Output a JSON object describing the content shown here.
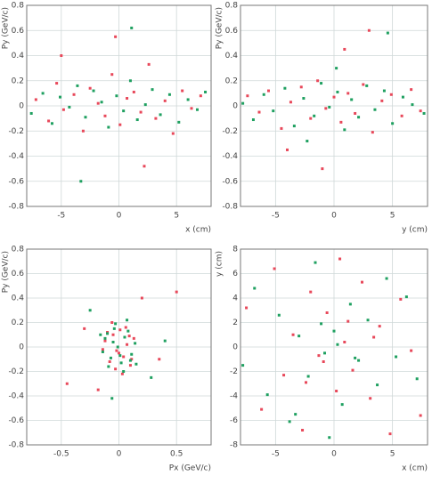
{
  "chart_data": [
    {
      "type": "scatter",
      "xlabel": "x (cm)",
      "ylabel": "Py (GeV/c)",
      "xlim": [
        -8,
        8
      ],
      "ylim": [
        -0.8,
        0.8
      ],
      "xticks": [
        -5,
        0,
        5
      ],
      "yticks": [
        -0.8,
        -0.6,
        -0.4,
        -0.2,
        0,
        0.2,
        0.4,
        0.6,
        0.8
      ],
      "grid": true,
      "series": [
        {
          "color": "#e8485a",
          "x": [
            -7.2,
            -6.1,
            -5.4,
            -4.8,
            -3.9,
            -3.1,
            -2.5,
            -1.8,
            -1.2,
            -0.6,
            0.1,
            0.7,
            1.3,
            1.9,
            2.6,
            3.2,
            4.0,
            4.7,
            5.5,
            6.3,
            7.1,
            -0.3,
            2.2,
            -5.0
          ],
          "y": [
            0.05,
            -0.12,
            0.18,
            -0.03,
            0.09,
            -0.2,
            0.14,
            0.02,
            -0.08,
            0.25,
            -0.15,
            0.06,
            0.11,
            -0.05,
            0.33,
            -0.1,
            0.04,
            -0.22,
            0.12,
            -0.02,
            0.08,
            0.55,
            -0.48,
            0.4
          ]
        },
        {
          "color": "#1fa060",
          "x": [
            -7.6,
            -6.6,
            -5.8,
            -5.1,
            -4.3,
            -3.6,
            -2.9,
            -2.2,
            -1.5,
            -0.9,
            -0.2,
            0.4,
            1.0,
            1.6,
            2.3,
            2.9,
            3.6,
            4.4,
            5.2,
            6.0,
            6.8,
            7.5,
            1.1,
            -3.3
          ],
          "y": [
            -0.06,
            0.1,
            -0.14,
            0.07,
            -0.01,
            0.16,
            -0.09,
            0.12,
            0.03,
            -0.17,
            0.08,
            -0.04,
            0.2,
            -0.11,
            0.01,
            0.13,
            -0.07,
            0.09,
            -0.13,
            0.05,
            -0.03,
            0.11,
            0.62,
            -0.6
          ]
        }
      ]
    },
    {
      "type": "scatter",
      "xlabel": "y (cm)",
      "ylabel": "Py (GeV/c)",
      "xlim": [
        -8,
        8
      ],
      "ylim": [
        -0.8,
        0.8
      ],
      "xticks": [
        -5,
        0,
        5
      ],
      "yticks": [
        -0.8,
        -0.6,
        -0.4,
        -0.2,
        0,
        0.2,
        0.4,
        0.6,
        0.8
      ],
      "grid": true,
      "series": [
        {
          "color": "#e8485a",
          "x": [
            -7.4,
            -6.4,
            -5.6,
            -4.5,
            -3.7,
            -2.8,
            -2.0,
            -1.4,
            -0.7,
            0.0,
            0.6,
            1.2,
            1.8,
            2.5,
            3.3,
            4.1,
            4.9,
            5.8,
            6.6,
            7.4,
            -1.0,
            0.9,
            3.0,
            -4.0
          ],
          "y": [
            0.08,
            -0.05,
            0.12,
            -0.18,
            0.03,
            0.15,
            -0.1,
            0.2,
            -0.02,
            0.07,
            -0.13,
            0.1,
            -0.06,
            0.17,
            -0.21,
            0.04,
            0.09,
            -0.08,
            0.13,
            -0.04,
            -0.5,
            0.45,
            0.6,
            -0.35
          ]
        },
        {
          "color": "#1fa060",
          "x": [
            -7.8,
            -6.9,
            -6.0,
            -5.2,
            -4.2,
            -3.4,
            -2.6,
            -1.7,
            -1.1,
            -0.4,
            0.3,
            0.9,
            1.5,
            2.1,
            2.8,
            3.5,
            4.3,
            5.0,
            5.9,
            6.7,
            7.7,
            0.2,
            -2.3,
            4.6
          ],
          "y": [
            0.02,
            -0.11,
            0.09,
            -0.04,
            0.14,
            -0.16,
            0.06,
            -0.08,
            0.18,
            -0.01,
            0.11,
            -0.19,
            0.05,
            -0.09,
            0.16,
            -0.03,
            0.12,
            -0.14,
            0.07,
            0.01,
            -0.06,
            0.3,
            -0.28,
            0.58
          ]
        }
      ]
    },
    {
      "type": "scatter",
      "xlabel": "Px (GeV/c)",
      "ylabel": "Py (GeV/c)",
      "xlim": [
        -0.8,
        0.8
      ],
      "ylim": [
        -0.8,
        0.8
      ],
      "xticks": [
        -0.5,
        0,
        0.5
      ],
      "yticks": [
        -0.8,
        -0.6,
        -0.4,
        -0.2,
        0,
        0.2,
        0.4,
        0.6,
        0.8
      ],
      "grid": true,
      "series": [
        {
          "color": "#e8485a",
          "x": [
            -0.12,
            -0.08,
            -0.05,
            -0.02,
            0.01,
            0.04,
            0.07,
            0.1,
            0.13,
            -0.1,
            -0.03,
            0.06,
            0.0,
            0.09,
            -0.14,
            0.11,
            -0.06,
            0.03,
            -0.3,
            0.35,
            -0.45,
            0.2,
            -0.18,
            0.5
          ],
          "y": [
            0.05,
            -0.12,
            0.1,
            -0.03,
            0.14,
            -0.08,
            0.02,
            -0.15,
            0.07,
            0.12,
            -0.18,
            0.16,
            -0.05,
            0.09,
            -0.02,
            -0.1,
            0.2,
            -0.22,
            0.15,
            -0.1,
            -0.3,
            0.4,
            -0.35,
            0.45
          ]
        },
        {
          "color": "#1fa060",
          "x": [
            -0.14,
            -0.1,
            -0.07,
            -0.04,
            -0.01,
            0.02,
            0.05,
            0.08,
            0.11,
            0.14,
            -0.09,
            -0.03,
            0.04,
            0.1,
            -0.12,
            0.07,
            -0.05,
            0.01,
            0.15,
            -0.16,
            -0.25,
            0.28,
            -0.06,
            0.4
          ],
          "y": [
            -0.04,
            0.11,
            -0.09,
            0.15,
            0.0,
            -0.13,
            0.08,
            0.13,
            -0.06,
            0.03,
            -0.16,
            0.19,
            -0.2,
            -0.11,
            0.07,
            0.22,
            0.04,
            -0.07,
            -0.14,
            0.1,
            0.3,
            -0.25,
            -0.42,
            0.05
          ]
        }
      ]
    },
    {
      "type": "scatter",
      "xlabel": "x (cm)",
      "ylabel": "y (cm)",
      "xlim": [
        -8,
        8
      ],
      "ylim": [
        -8,
        8
      ],
      "xticks": [
        -5,
        0,
        5
      ],
      "yticks": [
        -8,
        -6,
        -4,
        -2,
        0,
        2,
        4,
        6,
        8
      ],
      "grid": true,
      "series": [
        {
          "color": "#e8485a",
          "x": [
            -7.5,
            -6.2,
            -5.1,
            -4.3,
            -3.5,
            -2.7,
            -2.0,
            -1.3,
            -0.6,
            0.2,
            0.9,
            1.6,
            2.4,
            3.1,
            3.9,
            4.8,
            5.7,
            6.6,
            7.4,
            -0.9,
            1.2,
            -2.4,
            3.4,
            0.5
          ],
          "y": [
            3.2,
            -5.1,
            6.4,
            -2.3,
            1.0,
            -6.8,
            4.5,
            -0.7,
            2.8,
            -3.6,
            0.4,
            -1.9,
            5.3,
            -4.2,
            1.7,
            -7.1,
            3.9,
            -0.3,
            -5.6,
            -1.2,
            2.1,
            -2.9,
            0.8,
            7.2
          ]
        },
        {
          "color": "#1fa060",
          "x": [
            -7.8,
            -6.8,
            -5.7,
            -4.7,
            -3.8,
            -3.0,
            -2.2,
            -1.6,
            -0.8,
            0.0,
            0.7,
            1.4,
            2.1,
            2.9,
            3.7,
            4.5,
            5.3,
            6.2,
            7.1,
            -0.4,
            0.3,
            -1.1,
            1.8,
            -3.3
          ],
          "y": [
            -1.5,
            4.8,
            -3.9,
            2.6,
            -6.1,
            0.9,
            -2.4,
            6.9,
            -0.5,
            1.3,
            -4.7,
            3.5,
            -1.1,
            2.2,
            -3.1,
            5.6,
            -0.8,
            4.1,
            -2.6,
            -7.4,
            0.2,
            1.9,
            -0.9,
            -5.5
          ]
        }
      ]
    }
  ]
}
